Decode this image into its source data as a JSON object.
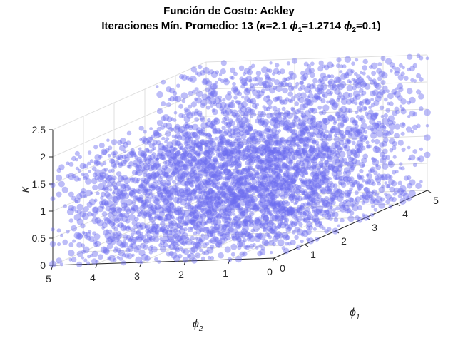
{
  "chart_data": {
    "type": "scatter3d",
    "title_line1": "Función de Costo: Ackley",
    "title_line2_prefix": "Iteraciones Mín. Promedio: 13 (",
    "title_k_symbol": "κ",
    "title_k_value": "=2.1 ",
    "title_phi_symbol": "ϕ",
    "title_phi1_sub": "1",
    "title_phi1_value": "=1.2714 ",
    "title_phi2_sub": "2",
    "title_phi2_value": "=0.1)",
    "xlabel_symbol": "ϕ",
    "xlabel_sub": "1",
    "ylabel_symbol": "ϕ",
    "ylabel_sub": "2",
    "zlabel": "κ",
    "xlim": [
      0,
      5
    ],
    "ylim": [
      0,
      5
    ],
    "zlim": [
      0,
      2.5
    ],
    "x_ticks": [
      "0",
      "1",
      "2",
      "3",
      "4",
      "5"
    ],
    "y_ticks": [
      "0",
      "1",
      "2",
      "3",
      "4",
      "5"
    ],
    "z_ticks": [
      "0",
      "0.5",
      "1",
      "1.5",
      "2",
      "2.5"
    ],
    "grid": true,
    "marker_color": "#6c6cf0",
    "grid_step_phi": 0.2,
    "grid_step_kappa": 0.1,
    "phi1_range": [
      0,
      5
    ],
    "phi2_range": [
      0,
      5
    ],
    "kappa_range": [
      0,
      2.5
    ]
  }
}
